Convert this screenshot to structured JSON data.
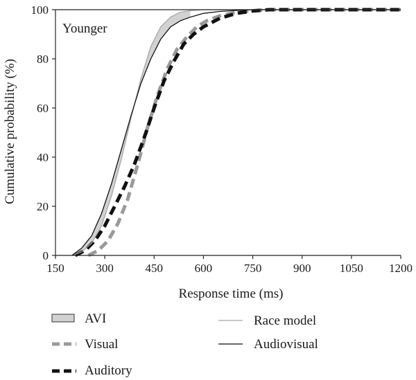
{
  "chart_data": {
    "type": "line",
    "panel_label": "Younger",
    "xlabel": "Response time (ms)",
    "ylabel": "Cumulative probability (%)",
    "xlim": [
      150,
      1200
    ],
    "ylim": [
      0,
      100
    ],
    "xticks": [
      150,
      300,
      450,
      600,
      750,
      900,
      1050,
      1200
    ],
    "yticks": [
      0,
      20,
      40,
      60,
      80,
      100
    ],
    "grid": false,
    "legend_position": "bottom",
    "series": [
      {
        "name": "Race model",
        "style": "thin-gray",
        "x": [
          200,
          230,
          260,
          290,
          320,
          350,
          380,
          410,
          440,
          470,
          500,
          530,
          560,
          600,
          650,
          700,
          750,
          800,
          900,
          1200
        ],
        "y": [
          0,
          1.5,
          5,
          12,
          24,
          39,
          56,
          72,
          85,
          93,
          97,
          99,
          99.6,
          100,
          100,
          100,
          100,
          100,
          100,
          100
        ]
      },
      {
        "name": "Audiovisual",
        "style": "thin-black",
        "x": [
          200,
          230,
          260,
          290,
          320,
          350,
          380,
          410,
          440,
          470,
          500,
          530,
          560,
          600,
          650,
          700,
          750,
          800,
          900,
          1200
        ],
        "y": [
          0,
          3,
          8,
          17,
          29,
          43,
          57,
          70,
          80,
          88,
          93,
          95.5,
          97,
          98.5,
          99.3,
          99.7,
          100,
          100,
          100,
          100
        ]
      },
      {
        "name": "Visual",
        "style": "dashed-gray",
        "x": [
          250,
          280,
          310,
          340,
          370,
          400,
          430,
          460,
          490,
          520,
          550,
          580,
          610,
          650,
          700,
          750,
          800,
          900,
          1200
        ],
        "y": [
          0,
          2,
          6,
          13,
          23,
          37,
          52,
          65,
          76,
          84,
          89,
          93,
          95.5,
          97.5,
          99,
          99.6,
          100,
          100,
          100
        ]
      },
      {
        "name": "Auditory",
        "style": "dashed-black",
        "x": [
          210,
          240,
          270,
          300,
          330,
          360,
          390,
          420,
          450,
          480,
          510,
          540,
          570,
          600,
          650,
          700,
          750,
          800,
          900,
          1200
        ],
        "y": [
          0,
          2,
          6,
          12,
          20,
          28,
          37,
          48,
          60,
          71,
          79,
          86,
          90,
          93,
          96.5,
          98.5,
          99.5,
          100,
          100,
          100
        ]
      }
    ],
    "shaded_region": {
      "name": "AVI",
      "between": [
        "Audiovisual",
        "Race model"
      ],
      "description_color": "#cfcfcf"
    },
    "legend": {
      "avi": "AVI",
      "visual": "Visual",
      "auditory": "Auditory",
      "race_model": "Race model",
      "audiovisual": "Audiovisual"
    },
    "colors": {
      "race_model": "#a6a6a6",
      "audiovisual": "#111111",
      "visual": "#9a9a9a",
      "auditory": "#111111",
      "avi_fill": "#d2d2d2"
    }
  }
}
